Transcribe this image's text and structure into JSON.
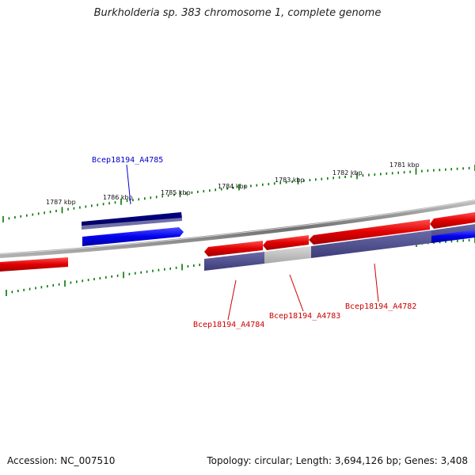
{
  "title": "Burkholderia sp. 383 chromosome 1, complete genome",
  "footer": {
    "accession": "Accession: NC_007510",
    "summary": "Topology: circular; Length: 3,694,126 bp; Genes: 3,408"
  },
  "ticks": [
    "1787 kbp",
    "1786 kbp",
    "1785 kbp",
    "1784 kbp",
    "1783 kbp",
    "1782 kbp",
    "1781 kbp"
  ],
  "genes": [
    {
      "label": "Bcep18194_A4785",
      "color": "#0000cc"
    },
    {
      "label": "Bcep18194_A4784",
      "color": "#cc0000"
    },
    {
      "label": "Bcep18194_A4783",
      "color": "#cc0000"
    },
    {
      "label": "Bcep18194_A4782",
      "color": "#cc0000"
    }
  ],
  "colors": {
    "forward": "#0000ff",
    "reverse": "#ee0000",
    "backbone": "#888888",
    "ticks": "#007700"
  }
}
